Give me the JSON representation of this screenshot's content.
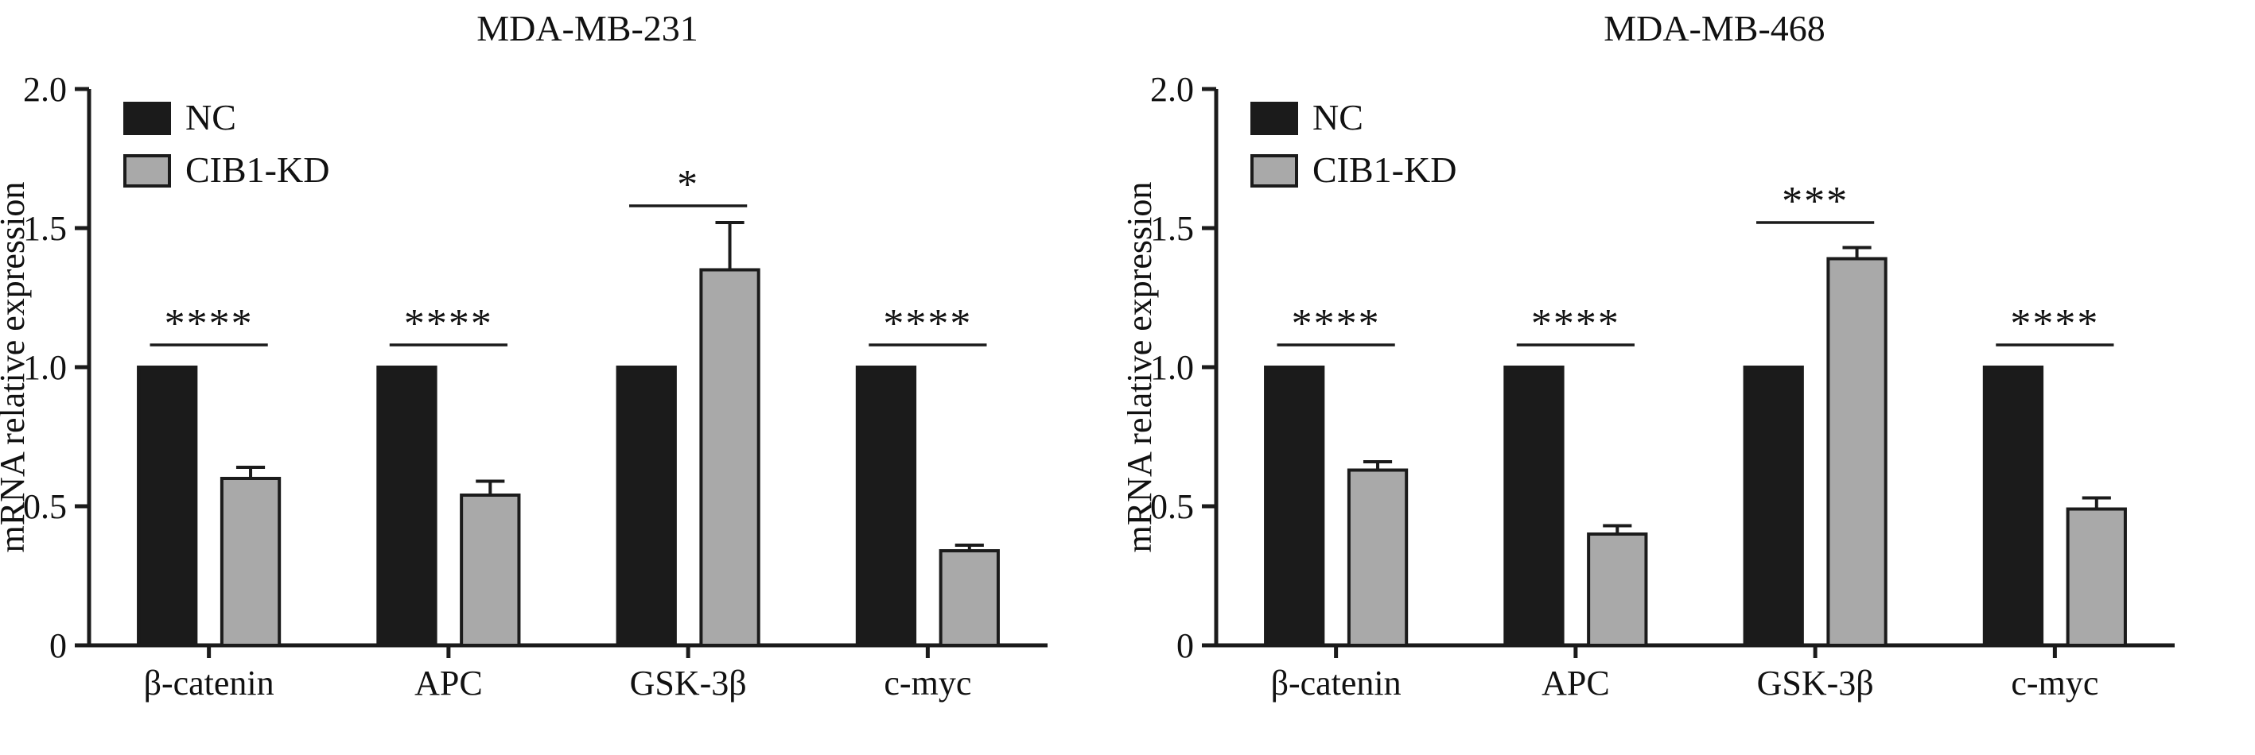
{
  "figure": {
    "background": "#ffffff",
    "axis_color": "#1b1b1b",
    "error_bar_color": "#1b1b1b"
  },
  "chart_data": [
    {
      "type": "bar",
      "title": "MDA-MB-231",
      "ylabel": "mRNA relative expression",
      "xlabel": "",
      "ylim": [
        0,
        2.0
      ],
      "yticks": [
        0,
        0.5,
        1.0,
        1.5,
        2.0
      ],
      "ytick_labels": [
        "0",
        "0.5",
        "1.0",
        "1.5",
        "2.0"
      ],
      "grid": false,
      "legend_position": "top-left",
      "categories": [
        "β-catenin",
        "APC",
        "GSK-3β",
        "c-myc"
      ],
      "series": [
        {
          "name": "NC",
          "color": "#1b1b1b",
          "values": [
            1.0,
            1.0,
            1.0,
            1.0
          ],
          "errors": [
            0,
            0,
            0,
            0
          ]
        },
        {
          "name": "CIB1-KD",
          "color": "#a9a9a9",
          "values": [
            0.6,
            0.54,
            1.35,
            0.34
          ],
          "errors": [
            0.04,
            0.05,
            0.17,
            0.02
          ]
        }
      ],
      "significance": [
        {
          "category": "β-catenin",
          "label": "****",
          "line_y": 1.08
        },
        {
          "category": "APC",
          "label": "****",
          "line_y": 1.08
        },
        {
          "category": "GSK-3β",
          "label": "*",
          "line_y": 1.58
        },
        {
          "category": "c-myc",
          "label": "****",
          "line_y": 1.08
        }
      ]
    },
    {
      "type": "bar",
      "title": "MDA-MB-468",
      "ylabel": "mRNA relative expression",
      "xlabel": "",
      "ylim": [
        0,
        2.0
      ],
      "yticks": [
        0,
        0.5,
        1.0,
        1.5,
        2.0
      ],
      "ytick_labels": [
        "0",
        "0.5",
        "1.0",
        "1.5",
        "2.0"
      ],
      "grid": false,
      "legend_position": "top-left",
      "categories": [
        "β-catenin",
        "APC",
        "GSK-3β",
        "c-myc"
      ],
      "series": [
        {
          "name": "NC",
          "color": "#1b1b1b",
          "values": [
            1.0,
            1.0,
            1.0,
            1.0
          ],
          "errors": [
            0,
            0,
            0,
            0
          ]
        },
        {
          "name": "CIB1-KD",
          "color": "#a9a9a9",
          "values": [
            0.63,
            0.4,
            1.39,
            0.49
          ],
          "errors": [
            0.03,
            0.03,
            0.04,
            0.04
          ]
        }
      ],
      "significance": [
        {
          "category": "β-catenin",
          "label": "****",
          "line_y": 1.08
        },
        {
          "category": "APC",
          "label": "****",
          "line_y": 1.08
        },
        {
          "category": "GSK-3β",
          "label": "***",
          "line_y": 1.52
        },
        {
          "category": "c-myc",
          "label": "****",
          "line_y": 1.08
        }
      ]
    }
  ]
}
